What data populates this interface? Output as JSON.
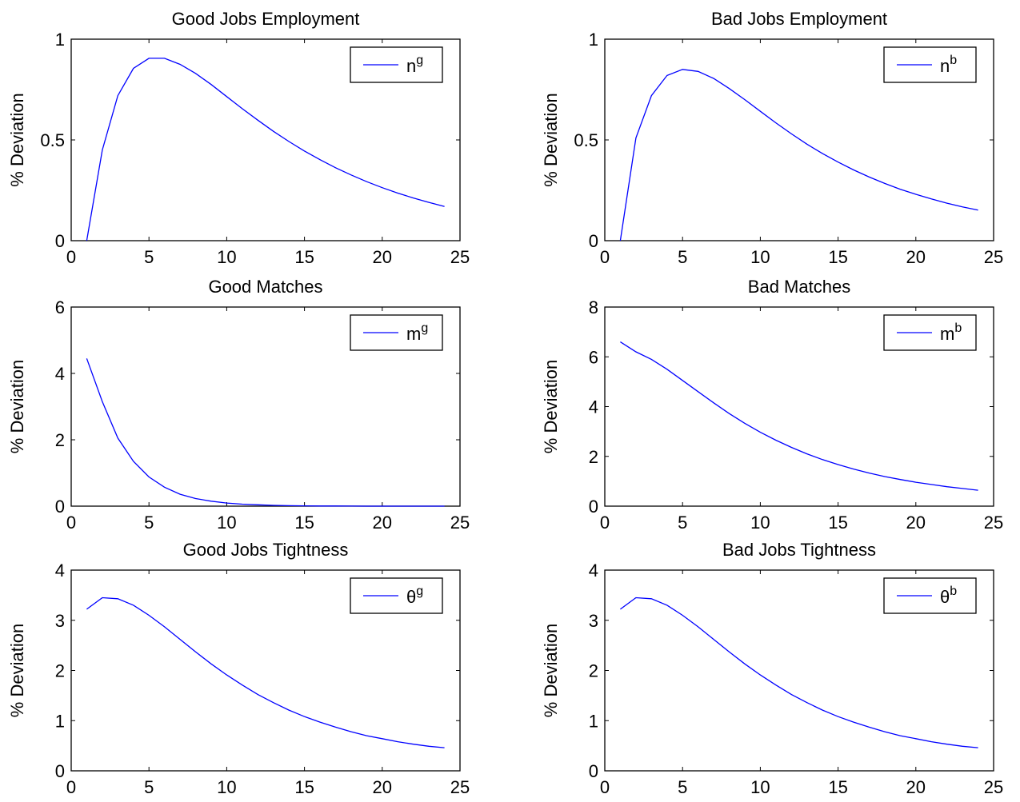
{
  "colors": {
    "line": "#0000ff",
    "axis": "#000000",
    "background": "#ffffff"
  },
  "chart_data": [
    {
      "type": "line",
      "title": "Good Jobs Employment",
      "ylabel": "% Deviation",
      "xlim": [
        0,
        25
      ],
      "ylim": [
        0,
        1
      ],
      "xticks": [
        0,
        5,
        10,
        15,
        20,
        25
      ],
      "yticks": [
        0,
        0.5,
        1
      ],
      "xtick_labels": [
        "0",
        "5",
        "10",
        "15",
        "20",
        "25"
      ],
      "ytick_labels": [
        "0",
        "0.5",
        "1"
      ],
      "grid": false,
      "legend_position": "top-right",
      "series": [
        {
          "name_base": "n",
          "name_sup": "g",
          "x": [
            1,
            2,
            3,
            4,
            5,
            6,
            7,
            8,
            9,
            10,
            11,
            12,
            13,
            14,
            15,
            16,
            17,
            18,
            19,
            20,
            21,
            22,
            23,
            24
          ],
          "y": [
            0,
            0.45,
            0.72,
            0.855,
            0.905,
            0.905,
            0.875,
            0.83,
            0.775,
            0.715,
            0.655,
            0.598,
            0.543,
            0.492,
            0.445,
            0.402,
            0.362,
            0.326,
            0.293,
            0.263,
            0.236,
            0.212,
            0.19,
            0.17
          ]
        }
      ]
    },
    {
      "type": "line",
      "title": "Bad Jobs Employment",
      "ylabel": "% Deviation",
      "xlim": [
        0,
        25
      ],
      "ylim": [
        0,
        1
      ],
      "xticks": [
        0,
        5,
        10,
        15,
        20,
        25
      ],
      "yticks": [
        0,
        0.5,
        1
      ],
      "xtick_labels": [
        "0",
        "5",
        "10",
        "15",
        "20",
        "25"
      ],
      "ytick_labels": [
        "0",
        "0.5",
        "1"
      ],
      "grid": false,
      "legend_position": "top-right",
      "series": [
        {
          "name_base": "n",
          "name_sup": "b",
          "x": [
            1,
            2,
            3,
            4,
            5,
            6,
            7,
            8,
            9,
            10,
            11,
            12,
            13,
            14,
            15,
            16,
            17,
            18,
            19,
            20,
            21,
            22,
            23,
            24
          ],
          "y": [
            0,
            0.51,
            0.72,
            0.82,
            0.85,
            0.84,
            0.805,
            0.755,
            0.7,
            0.642,
            0.585,
            0.53,
            0.479,
            0.432,
            0.39,
            0.351,
            0.316,
            0.284,
            0.255,
            0.23,
            0.207,
            0.186,
            0.168,
            0.152
          ]
        }
      ]
    },
    {
      "type": "line",
      "title": "Good Matches",
      "ylabel": "% Deviation",
      "xlim": [
        0,
        25
      ],
      "ylim": [
        0,
        6
      ],
      "xticks": [
        0,
        5,
        10,
        15,
        20,
        25
      ],
      "yticks": [
        0,
        2,
        4,
        6
      ],
      "xtick_labels": [
        "0",
        "5",
        "10",
        "15",
        "20",
        "25"
      ],
      "ytick_labels": [
        "0",
        "2",
        "4",
        "6"
      ],
      "grid": false,
      "legend_position": "top-right",
      "series": [
        {
          "name_base": "m",
          "name_sup": "g",
          "x": [
            1,
            2,
            3,
            4,
            5,
            6,
            7,
            8,
            9,
            10,
            11,
            12,
            13,
            14,
            15,
            16,
            17,
            18,
            19,
            20,
            21,
            22,
            23,
            24
          ],
          "y": [
            4.45,
            3.15,
            2.05,
            1.35,
            0.88,
            0.57,
            0.36,
            0.23,
            0.15,
            0.095,
            0.06,
            0.04,
            0.025,
            0.015,
            0.01,
            0.006,
            0.004,
            0.002,
            0.001,
            0,
            0,
            0,
            0,
            0
          ]
        }
      ]
    },
    {
      "type": "line",
      "title": "Bad Matches",
      "ylabel": "% Deviation",
      "xlim": [
        0,
        25
      ],
      "ylim": [
        0,
        8
      ],
      "xticks": [
        0,
        5,
        10,
        15,
        20,
        25
      ],
      "yticks": [
        0,
        2,
        4,
        6,
        8
      ],
      "xtick_labels": [
        "0",
        "5",
        "10",
        "15",
        "20",
        "25"
      ],
      "ytick_labels": [
        "0",
        "2",
        "4",
        "6",
        "8"
      ],
      "grid": false,
      "legend_position": "top-right",
      "series": [
        {
          "name_base": "m",
          "name_sup": "b",
          "x": [
            1,
            2,
            3,
            4,
            5,
            6,
            7,
            8,
            9,
            10,
            11,
            12,
            13,
            14,
            15,
            16,
            17,
            18,
            19,
            20,
            21,
            22,
            23,
            24
          ],
          "y": [
            6.6,
            6.2,
            5.9,
            5.5,
            5.05,
            4.6,
            4.15,
            3.72,
            3.33,
            2.97,
            2.65,
            2.36,
            2.1,
            1.87,
            1.67,
            1.49,
            1.33,
            1.19,
            1.07,
            0.96,
            0.87,
            0.78,
            0.71,
            0.64
          ]
        }
      ]
    },
    {
      "type": "line",
      "title": "Good Jobs Tightness",
      "ylabel": "% Deviation",
      "xlim": [
        0,
        25
      ],
      "ylim": [
        0,
        4
      ],
      "xticks": [
        0,
        5,
        10,
        15,
        20,
        25
      ],
      "yticks": [
        0,
        1,
        2,
        3,
        4
      ],
      "xtick_labels": [
        "0",
        "5",
        "10",
        "15",
        "20",
        "25"
      ],
      "ytick_labels": [
        "0",
        "1",
        "2",
        "3",
        "4"
      ],
      "grid": false,
      "legend_position": "top-right",
      "series": [
        {
          "name_base": "θ",
          "name_sup": "g",
          "x": [
            1,
            2,
            3,
            4,
            5,
            6,
            7,
            8,
            9,
            10,
            11,
            12,
            13,
            14,
            15,
            16,
            17,
            18,
            19,
            20,
            21,
            22,
            23,
            24
          ],
          "y": [
            3.22,
            3.45,
            3.43,
            3.3,
            3.1,
            2.87,
            2.62,
            2.37,
            2.13,
            1.91,
            1.71,
            1.52,
            1.36,
            1.21,
            1.08,
            0.97,
            0.87,
            0.78,
            0.7,
            0.64,
            0.58,
            0.53,
            0.49,
            0.46
          ]
        }
      ]
    },
    {
      "type": "line",
      "title": "Bad Jobs Tightness",
      "ylabel": "% Deviation",
      "xlim": [
        0,
        25
      ],
      "ylim": [
        0,
        4
      ],
      "xticks": [
        0,
        5,
        10,
        15,
        20,
        25
      ],
      "yticks": [
        0,
        1,
        2,
        3,
        4
      ],
      "xtick_labels": [
        "0",
        "5",
        "10",
        "15",
        "20",
        "25"
      ],
      "ytick_labels": [
        "0",
        "1",
        "2",
        "3",
        "4"
      ],
      "grid": false,
      "legend_position": "top-right",
      "series": [
        {
          "name_base": "θ",
          "name_sup": "b",
          "x": [
            1,
            2,
            3,
            4,
            5,
            6,
            7,
            8,
            9,
            10,
            11,
            12,
            13,
            14,
            15,
            16,
            17,
            18,
            19,
            20,
            21,
            22,
            23,
            24
          ],
          "y": [
            3.22,
            3.45,
            3.43,
            3.3,
            3.1,
            2.87,
            2.62,
            2.37,
            2.13,
            1.91,
            1.71,
            1.52,
            1.36,
            1.21,
            1.08,
            0.97,
            0.87,
            0.78,
            0.7,
            0.64,
            0.58,
            0.53,
            0.49,
            0.46
          ]
        }
      ]
    }
  ]
}
